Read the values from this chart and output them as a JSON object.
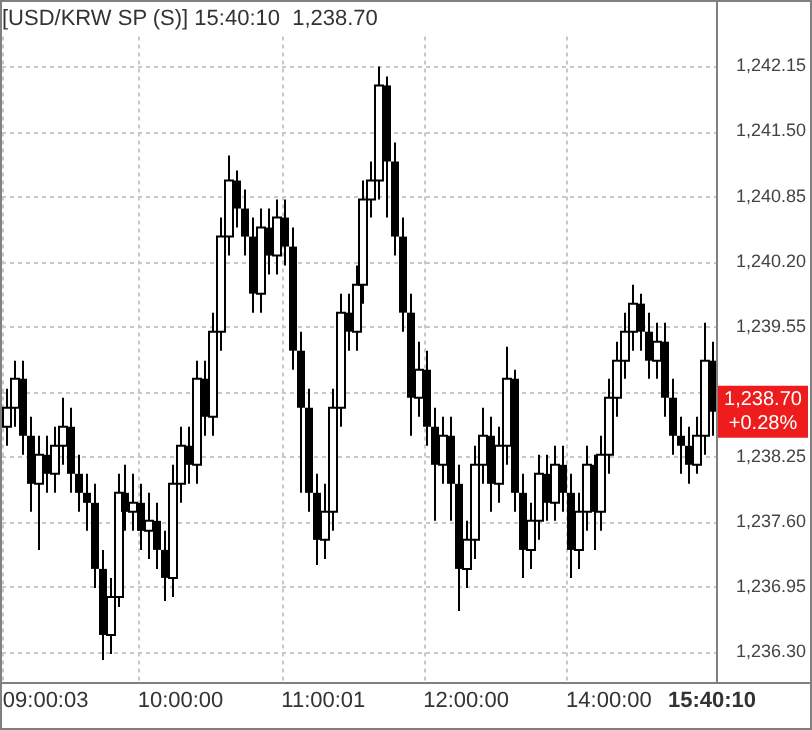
{
  "chart_data": {
    "type": "candlestick",
    "title": "[USD/KRW SP (S)] 15:40:10  1,238.70",
    "categories": [
      null,
      null,
      null,
      null,
      null,
      "09:00:03",
      null,
      null,
      null,
      null,
      null,
      null,
      null,
      null,
      null,
      null,
      null,
      null,
      null,
      null,
      null,
      null,
      "10:00:00",
      null,
      null,
      null,
      null,
      null,
      null,
      null,
      null,
      null,
      null,
      null,
      null,
      null,
      null,
      null,
      null,
      null,
      "11:00:01",
      null,
      null,
      null,
      null,
      null,
      null,
      null,
      null,
      null,
      null,
      null,
      null,
      null,
      null,
      null,
      null,
      null,
      "12:00:00",
      null,
      null,
      null,
      null,
      null,
      null,
      null,
      null,
      null,
      null,
      null,
      null,
      null,
      null,
      null,
      null,
      null,
      "14:00:00",
      null,
      null,
      null,
      null,
      null,
      null,
      null,
      null,
      null,
      null,
      null,
      null,
      "15:40:10"
    ],
    "ohlc": [
      [
        1238.55,
        1238.93,
        1238.36,
        1238.74
      ],
      [
        1238.74,
        1239.21,
        1238.55,
        1239.03
      ],
      [
        1239.03,
        1239.21,
        1238.27,
        1238.46
      ],
      [
        1238.46,
        1238.65,
        1237.7,
        1237.98
      ],
      [
        1237.98,
        1238.46,
        1237.32,
        1238.27
      ],
      [
        1238.27,
        1238.46,
        1237.89,
        1238.08
      ],
      [
        1238.08,
        1238.55,
        1237.89,
        1238.36
      ],
      [
        1238.36,
        1238.84,
        1238.17,
        1238.55
      ],
      [
        1238.55,
        1238.74,
        1237.89,
        1238.08
      ],
      [
        1238.08,
        1238.27,
        1237.7,
        1237.89
      ],
      [
        1237.89,
        1238.08,
        1237.51,
        1237.79
      ],
      [
        1237.79,
        1237.98,
        1236.94,
        1237.13
      ],
      [
        1237.13,
        1237.32,
        1236.22,
        1236.47
      ],
      [
        1236.47,
        1237.04,
        1236.28,
        1236.85
      ],
      [
        1236.85,
        1238.08,
        1236.75,
        1237.89
      ],
      [
        1237.89,
        1238.17,
        1237.51,
        1237.7
      ],
      [
        1237.7,
        1238.08,
        1237.51,
        1237.79
      ],
      [
        1237.79,
        1237.98,
        1237.32,
        1237.51
      ],
      [
        1237.51,
        1237.89,
        1237.23,
        1237.61
      ],
      [
        1237.61,
        1237.79,
        1237.13,
        1237.32
      ],
      [
        1237.32,
        1237.51,
        1236.81,
        1237.04
      ],
      [
        1237.04,
        1238.17,
        1236.85,
        1237.98
      ],
      [
        1237.98,
        1238.55,
        1237.79,
        1238.36
      ],
      [
        1238.36,
        1238.55,
        1237.98,
        1238.17
      ],
      [
        1238.17,
        1239.21,
        1237.98,
        1239.03
      ],
      [
        1239.03,
        1239.21,
        1238.46,
        1238.65
      ],
      [
        1238.65,
        1239.69,
        1238.46,
        1239.5
      ],
      [
        1239.5,
        1240.64,
        1239.31,
        1240.45
      ],
      [
        1240.45,
        1241.26,
        1240.26,
        1241.01
      ],
      [
        1241.01,
        1241.11,
        1240.54,
        1240.73
      ],
      [
        1240.73,
        1240.92,
        1240.26,
        1240.45
      ],
      [
        1240.45,
        1240.64,
        1239.69,
        1239.88
      ],
      [
        1239.88,
        1240.73,
        1239.69,
        1240.54
      ],
      [
        1240.54,
        1240.73,
        1240.07,
        1240.26
      ],
      [
        1240.26,
        1240.82,
        1240.07,
        1240.64
      ],
      [
        1240.64,
        1240.82,
        1240.16,
        1240.35
      ],
      [
        1240.35,
        1240.54,
        1239.12,
        1239.31
      ],
      [
        1239.31,
        1239.5,
        1237.89,
        1238.74
      ],
      [
        1238.74,
        1238.93,
        1237.7,
        1237.89
      ],
      [
        1237.89,
        1238.08,
        1237.17,
        1237.42
      ],
      [
        1237.42,
        1237.98,
        1237.23,
        1237.7
      ],
      [
        1237.7,
        1238.93,
        1237.51,
        1238.74
      ],
      [
        1238.74,
        1239.88,
        1238.55,
        1239.69
      ],
      [
        1239.69,
        1239.88,
        1239.31,
        1239.5
      ],
      [
        1239.5,
        1240.16,
        1239.31,
        1239.97
      ],
      [
        1239.97,
        1241.01,
        1239.78,
        1240.82
      ],
      [
        1240.82,
        1241.2,
        1240.64,
        1241.01
      ],
      [
        1241.01,
        1242.15,
        1240.82,
        1241.96
      ],
      [
        1241.96,
        1242.05,
        1240.64,
        1241.2
      ],
      [
        1241.2,
        1241.39,
        1240.26,
        1240.45
      ],
      [
        1240.45,
        1240.64,
        1239.5,
        1239.69
      ],
      [
        1239.69,
        1239.88,
        1238.46,
        1238.84
      ],
      [
        1238.84,
        1239.4,
        1238.65,
        1239.12
      ],
      [
        1239.12,
        1239.31,
        1238.36,
        1238.55
      ],
      [
        1238.55,
        1238.74,
        1237.61,
        1238.17
      ],
      [
        1238.17,
        1238.65,
        1237.98,
        1238.46
      ],
      [
        1238.46,
        1238.65,
        1237.61,
        1237.98
      ],
      [
        1237.98,
        1238.17,
        1236.71,
        1237.13
      ],
      [
        1237.13,
        1237.61,
        1236.94,
        1237.42
      ],
      [
        1237.42,
        1238.36,
        1237.23,
        1238.17
      ],
      [
        1238.17,
        1238.74,
        1237.98,
        1238.46
      ],
      [
        1238.46,
        1238.65,
        1237.7,
        1237.98
      ],
      [
        1237.98,
        1238.55,
        1237.79,
        1238.36
      ],
      [
        1238.36,
        1239.35,
        1238.17,
        1239.03
      ],
      [
        1239.03,
        1239.12,
        1237.7,
        1237.89
      ],
      [
        1237.89,
        1238.08,
        1237.04,
        1237.32
      ],
      [
        1237.32,
        1237.79,
        1237.13,
        1237.61
      ],
      [
        1237.61,
        1238.27,
        1237.42,
        1238.08
      ],
      [
        1238.08,
        1238.27,
        1237.61,
        1237.79
      ],
      [
        1237.79,
        1238.36,
        1237.61,
        1238.17
      ],
      [
        1238.17,
        1238.36,
        1237.7,
        1237.89
      ],
      [
        1237.89,
        1238.08,
        1237.04,
        1237.32
      ],
      [
        1237.32,
        1237.89,
        1237.13,
        1237.7
      ],
      [
        1237.7,
        1238.36,
        1237.51,
        1238.17
      ],
      [
        1238.17,
        1238.27,
        1237.32,
        1237.7
      ],
      [
        1237.7,
        1238.46,
        1237.51,
        1238.27
      ],
      [
        1238.27,
        1239.03,
        1238.08,
        1238.84
      ],
      [
        1238.84,
        1239.4,
        1238.65,
        1239.21
      ],
      [
        1239.21,
        1239.69,
        1239.03,
        1239.5
      ],
      [
        1239.5,
        1239.97,
        1239.31,
        1239.78
      ],
      [
        1239.78,
        1239.88,
        1239.31,
        1239.5
      ],
      [
        1239.5,
        1239.69,
        1239.03,
        1239.21
      ],
      [
        1239.21,
        1239.59,
        1239.03,
        1239.4
      ],
      [
        1239.4,
        1239.59,
        1238.65,
        1238.84
      ],
      [
        1238.84,
        1239.03,
        1238.27,
        1238.46
      ],
      [
        1238.46,
        1238.65,
        1238.08,
        1238.36
      ],
      [
        1238.36,
        1238.55,
        1237.98,
        1238.17
      ],
      [
        1238.17,
        1238.65,
        1238.08,
        1238.46
      ],
      [
        1238.46,
        1239.59,
        1238.27,
        1239.21
      ],
      [
        1239.21,
        1239.4,
        1238.46,
        1238.7
      ]
    ],
    "color": "#000000",
    "ylim": [
      1236.0,
      1242.45
    ],
    "yticks": [
      {
        "value": 1236.3,
        "label": "1,236.30"
      },
      {
        "value": 1236.95,
        "label": "1,236.95"
      },
      {
        "value": 1237.6,
        "label": "1,237.60"
      },
      {
        "value": 1238.25,
        "label": "1,238.25"
      },
      {
        "value": 1238.9,
        "label": null
      },
      {
        "value": 1239.55,
        "label": "1,239.55"
      },
      {
        "value": 1240.2,
        "label": "1,240.20"
      },
      {
        "value": 1240.85,
        "label": "1,240.85"
      },
      {
        "value": 1241.5,
        "label": "1,241.50"
      },
      {
        "value": 1242.15,
        "label": "1,242.15"
      }
    ],
    "grid": true,
    "annotations": [
      "1,238.70\n+0.28%"
    ]
  }
}
